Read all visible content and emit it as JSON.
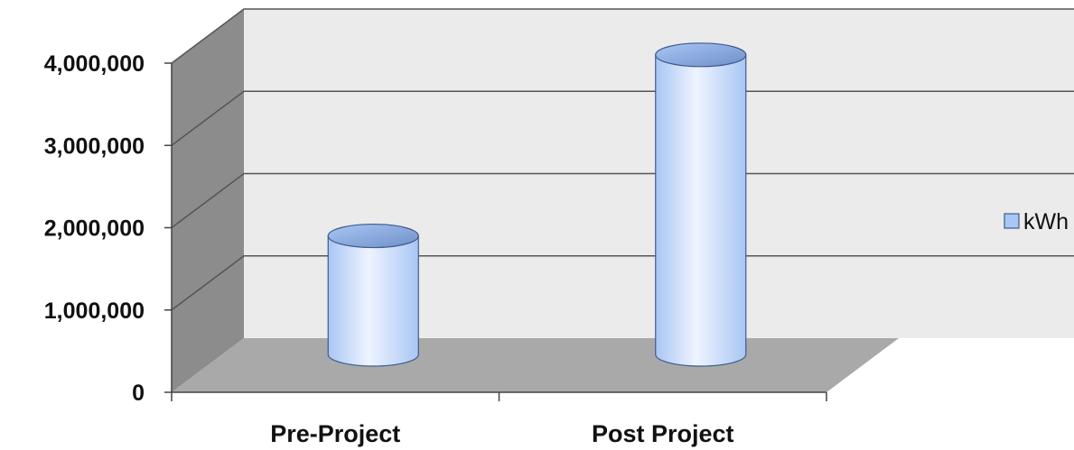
{
  "chart_data": {
    "type": "bar",
    "style": "3d-cylinder",
    "title": "",
    "xlabel": "",
    "ylabel": "",
    "categories": [
      "Pre-Project",
      "Post Project"
    ],
    "series": [
      {
        "name": "kWh",
        "values": [
          1550000,
          3750000
        ]
      }
    ],
    "ylim": [
      0,
      4000000
    ],
    "yticks": [
      0,
      1000000,
      2000000,
      3000000,
      4000000
    ],
    "ytick_labels": [
      "0",
      "1,000,000",
      "2,000,000",
      "3,000,000",
      "4,000,000"
    ],
    "grid": true,
    "legend_position": "right",
    "colors": {
      "bar_light": "#eef4ff",
      "bar_mid": "#a9c6f4",
      "bar_dark": "#6f8fc8",
      "bar_outline": "#3e5b8c",
      "wall_back": "#ebebeb",
      "wall_side": "#8c8c8c",
      "floor": "#a9a9a9",
      "gridline": "#555555"
    }
  }
}
